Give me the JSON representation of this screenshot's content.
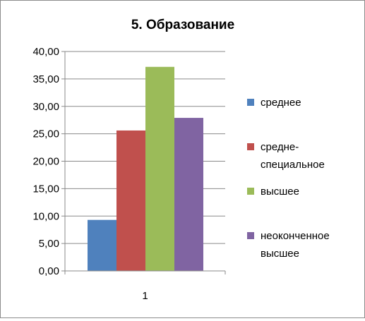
{
  "chart_data": {
    "type": "bar",
    "title": "5.  Образование",
    "categories": [
      "1"
    ],
    "y_ticks": [
      "0,00",
      "5,00",
      "10,00",
      "15,00",
      "20,00",
      "25,00",
      "30,00",
      "35,00",
      "40,00"
    ],
    "ylim": [
      0,
      40
    ],
    "grid": true,
    "legend_position": "right",
    "series": [
      {
        "name": "среднее",
        "values": [
          9.3
        ],
        "color": "#4F81BD"
      },
      {
        "name": "средне-специальное",
        "values": [
          25.6
        ],
        "color": "#C0504D"
      },
      {
        "name": "высшее",
        "values": [
          37.2
        ],
        "color": "#9BBB59"
      },
      {
        "name": "неоконченное высшее",
        "values": [
          27.9
        ],
        "color": "#8064A2"
      }
    ],
    "legend": [
      {
        "lines": [
          "среднее"
        ]
      },
      {
        "lines": [
          "средне-",
          "специальное"
        ]
      },
      {
        "lines": [
          "высшее"
        ]
      },
      {
        "lines": [
          "неоконченное",
          "высшее"
        ]
      }
    ]
  }
}
